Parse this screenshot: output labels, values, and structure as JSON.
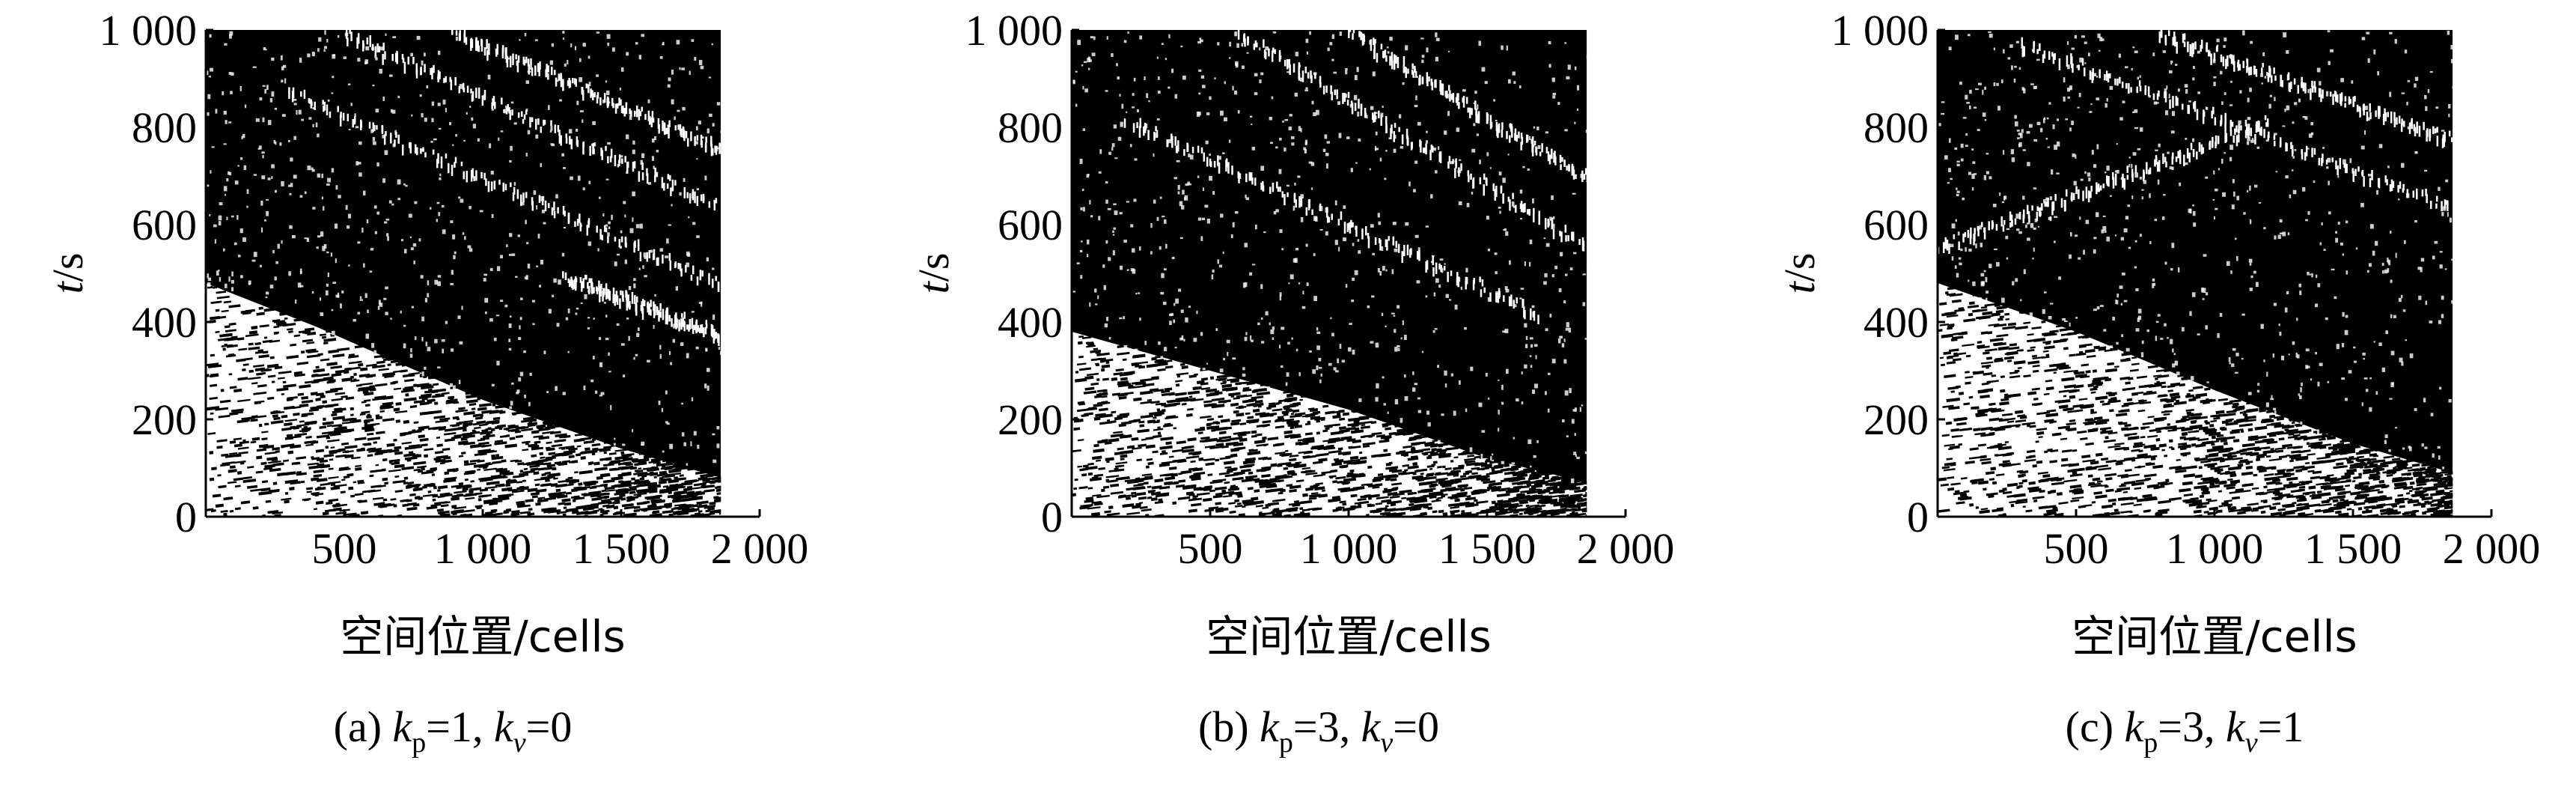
{
  "chart_data": [
    {
      "type": "heatmap",
      "panel": "a",
      "caption": {
        "prefix": "(a) ",
        "k1": "k",
        "s1": "p",
        "v1": "=1, ",
        "k2": "k",
        "s2": "v",
        "v2": "=0"
      },
      "xlabel": "空间位置/cells",
      "ylabel": {
        "var": "t",
        "unit": "/s"
      },
      "xlim": [
        0,
        2000
      ],
      "ylim": [
        0,
        1000
      ],
      "xticks": [
        500,
        1000,
        1500,
        2000
      ],
      "xtick_labels": [
        "500",
        "1 000",
        "1 500",
        "2 000"
      ],
      "yticks": [
        0,
        200,
        400,
        600,
        800,
        1000
      ],
      "ytick_labels": [
        "0",
        "200",
        "400",
        "600",
        "800",
        "1 000"
      ],
      "x_data_max": 1860,
      "boundary": [
        [
          0,
          480
        ],
        [
          400,
          390
        ],
        [
          1000,
          240
        ],
        [
          1500,
          140
        ],
        [
          1860,
          80
        ]
      ],
      "jams": [
        {
          "x0": 1300,
          "t0": 500,
          "x1": 1860,
          "t1": 380
        },
        {
          "x0": 300,
          "t0": 880,
          "x1": 1860,
          "t1": 480
        },
        {
          "x0": 500,
          "t0": 1000,
          "x1": 1860,
          "t1": 640
        },
        {
          "x0": 900,
          "t0": 1000,
          "x1": 1860,
          "t1": 760
        }
      ]
    },
    {
      "type": "heatmap",
      "panel": "b",
      "caption": {
        "prefix": "(b) ",
        "k1": "k",
        "s1": "p",
        "v1": "=3, ",
        "k2": "k",
        "s2": "v",
        "v2": "=0"
      },
      "xlabel": "空间位置/cells",
      "ylabel": {
        "var": "t",
        "unit": "/s"
      },
      "xlim": [
        0,
        2000
      ],
      "ylim": [
        0,
        1000
      ],
      "xticks": [
        500,
        1000,
        1500,
        2000
      ],
      "xtick_labels": [
        "500",
        "1 000",
        "1 500",
        "2 000"
      ],
      "yticks": [
        0,
        200,
        400,
        600,
        800,
        1000
      ],
      "ytick_labels": [
        "0",
        "200",
        "400",
        "600",
        "800",
        "1 000"
      ],
      "x_data_max": 1860,
      "boundary": [
        [
          0,
          380
        ],
        [
          500,
          300
        ],
        [
          1000,
          220
        ],
        [
          1500,
          120
        ],
        [
          1860,
          70
        ]
      ],
      "jams": [
        {
          "x0": 200,
          "t0": 820,
          "x1": 1700,
          "t1": 420
        },
        {
          "x0": 600,
          "t0": 1000,
          "x1": 1860,
          "t1": 560
        },
        {
          "x0": 1000,
          "t0": 1000,
          "x1": 1860,
          "t1": 700
        }
      ]
    },
    {
      "type": "heatmap",
      "panel": "c",
      "caption": {
        "prefix": "(c) ",
        "k1": "k",
        "s1": "p",
        "v1": "=3, ",
        "k2": "k",
        "s2": "v",
        "v2": "=1"
      },
      "xlabel": "空间位置/cells",
      "ylabel": {
        "var": "t",
        "unit": "/s"
      },
      "xlim": [
        0,
        2000
      ],
      "ylim": [
        0,
        1000
      ],
      "xticks": [
        500,
        1000,
        1500,
        2000
      ],
      "xtick_labels": [
        "500",
        "1 000",
        "1 500",
        "2 000"
      ],
      "yticks": [
        0,
        200,
        400,
        600,
        800,
        1000
      ],
      "ytick_labels": [
        "0",
        "200",
        "400",
        "600",
        "800",
        "1 000"
      ],
      "x_data_max": 1860,
      "boundary": [
        [
          0,
          480
        ],
        [
          500,
          380
        ],
        [
          1000,
          260
        ],
        [
          1500,
          150
        ],
        [
          1860,
          90
        ]
      ],
      "jams": [
        {
          "x0": 0,
          "t0": 560,
          "x1": 1200,
          "t1": 820
        },
        {
          "x0": 300,
          "t0": 980,
          "x1": 1860,
          "t1": 640
        },
        {
          "x0": 800,
          "t0": 1000,
          "x1": 1860,
          "t1": 780
        }
      ]
    }
  ],
  "colors": {
    "background": "#ffffff",
    "occupied": "#000000",
    "free": "#ffffff"
  }
}
